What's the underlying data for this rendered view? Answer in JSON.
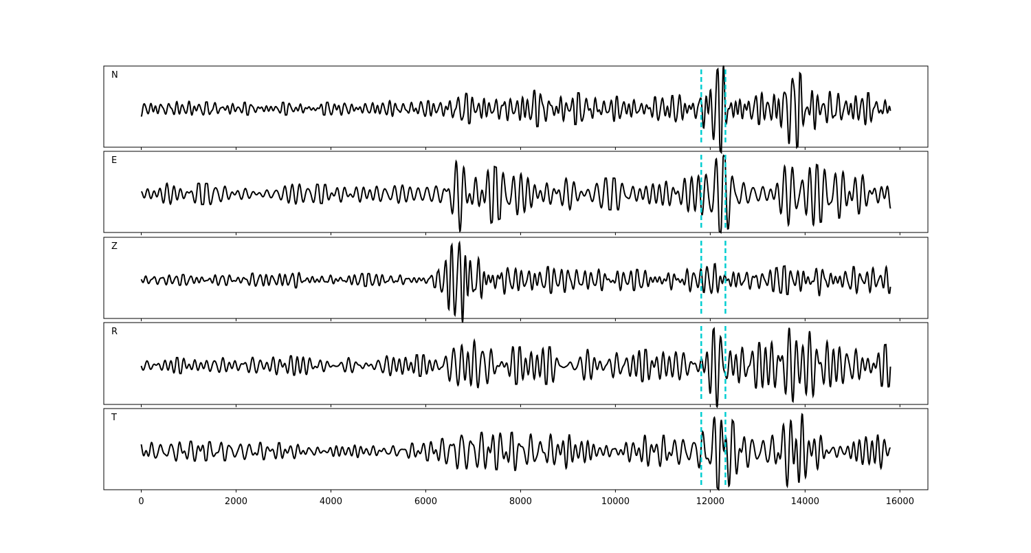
{
  "chart_data": {
    "type": "line",
    "title": "",
    "xlabel": "",
    "ylabel": "",
    "xlim": [
      -790,
      16590
    ],
    "x_ticks": [
      0,
      2000,
      4000,
      6000,
      8000,
      10000,
      12000,
      14000,
      16000
    ],
    "x_tick_labels": [
      "0",
      "2000",
      "4000",
      "6000",
      "8000",
      "10000",
      "12000",
      "14000",
      "16000"
    ],
    "sample_count": 15800,
    "envelope_bin_size": 500,
    "grid": false,
    "line_color": "#000000",
    "marker_color": "#00CED1",
    "vertical_markers": [
      11810,
      12320
    ],
    "series": [
      {
        "name": "N",
        "amplitude_envelope": [
          0.15,
          0.15,
          0.13,
          0.12,
          0.12,
          0.12,
          0.12,
          0.12,
          0.12,
          0.13,
          0.15,
          0.15,
          0.15,
          0.3,
          0.25,
          0.25,
          0.35,
          0.3,
          0.3,
          0.25,
          0.22,
          0.22,
          0.25,
          0.3,
          0.85,
          0.3,
          0.3,
          0.8,
          0.35,
          0.3,
          0.3,
          0.3
        ]
      },
      {
        "name": "E",
        "amplitude_envelope": [
          0.2,
          0.22,
          0.2,
          0.2,
          0.2,
          0.2,
          0.22,
          0.18,
          0.18,
          0.18,
          0.18,
          0.18,
          0.25,
          0.85,
          0.6,
          0.4,
          0.4,
          0.4,
          0.35,
          0.3,
          0.3,
          0.3,
          0.35,
          0.4,
          0.75,
          0.4,
          0.4,
          0.8,
          0.55,
          0.45,
          0.35,
          0.4
        ]
      },
      {
        "name": "Z",
        "amplitude_envelope": [
          0.1,
          0.1,
          0.1,
          0.1,
          0.12,
          0.15,
          0.15,
          0.12,
          0.12,
          0.12,
          0.12,
          0.1,
          0.15,
          1.0,
          0.45,
          0.25,
          0.25,
          0.25,
          0.2,
          0.2,
          0.2,
          0.2,
          0.25,
          0.2,
          0.35,
          0.2,
          0.2,
          0.3,
          0.3,
          0.25,
          0.25,
          0.25
        ]
      },
      {
        "name": "R",
        "amplitude_envelope": [
          0.12,
          0.15,
          0.15,
          0.2,
          0.2,
          0.2,
          0.18,
          0.15,
          0.15,
          0.2,
          0.2,
          0.2,
          0.2,
          0.7,
          0.6,
          0.35,
          0.35,
          0.35,
          0.3,
          0.3,
          0.3,
          0.3,
          0.3,
          0.3,
          0.9,
          0.4,
          0.45,
          0.85,
          0.6,
          0.4,
          0.35,
          0.4
        ]
      },
      {
        "name": "T",
        "amplitude_envelope": [
          0.2,
          0.2,
          0.18,
          0.18,
          0.18,
          0.15,
          0.18,
          0.18,
          0.15,
          0.15,
          0.15,
          0.15,
          0.2,
          0.4,
          0.35,
          0.35,
          0.4,
          0.45,
          0.3,
          0.3,
          0.3,
          0.3,
          0.3,
          0.3,
          0.8,
          0.3,
          0.3,
          0.85,
          0.45,
          0.35,
          0.45,
          0.35
        ]
      }
    ]
  }
}
